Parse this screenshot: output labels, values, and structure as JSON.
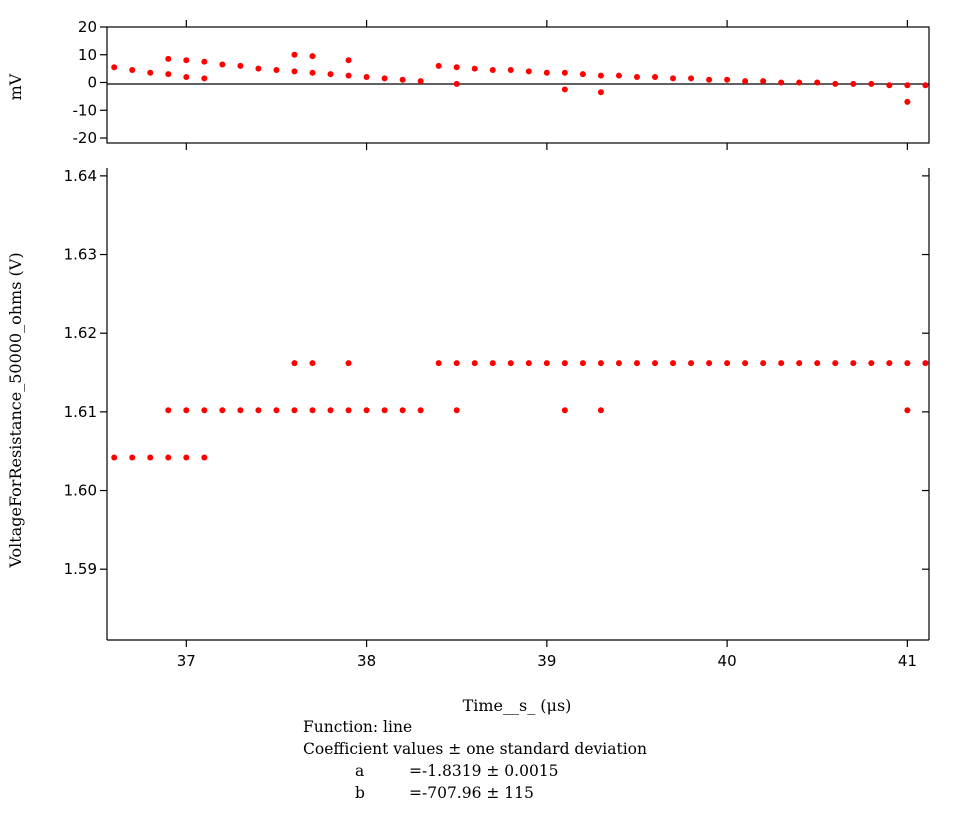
{
  "chart_data": [
    {
      "type": "scatter",
      "panel": "residuals",
      "ylabel": "mV",
      "ylim": [
        -20,
        20
      ],
      "yticks": [
        20,
        10,
        0,
        -10,
        -20
      ],
      "zero_line": true,
      "color": "#ff0000",
      "points": [
        [
          36.6,
          5.5
        ],
        [
          36.7,
          4.5
        ],
        [
          36.8,
          3.5
        ],
        [
          36.9,
          8.5
        ],
        [
          36.9,
          3.0
        ],
        [
          37.0,
          8.0
        ],
        [
          37.0,
          2.0
        ],
        [
          37.1,
          7.5
        ],
        [
          37.1,
          1.5
        ],
        [
          37.2,
          6.5
        ],
        [
          37.3,
          6.0
        ],
        [
          37.4,
          5.0
        ],
        [
          37.5,
          4.5
        ],
        [
          37.6,
          10.0
        ],
        [
          37.6,
          4.0
        ],
        [
          37.7,
          9.5
        ],
        [
          37.7,
          3.5
        ],
        [
          37.8,
          3.0
        ],
        [
          37.9,
          8.0
        ],
        [
          37.9,
          2.5
        ],
        [
          38.0,
          2.0
        ],
        [
          38.1,
          1.5
        ],
        [
          38.2,
          1.0
        ],
        [
          38.3,
          0.5
        ],
        [
          38.4,
          6.0
        ],
        [
          38.5,
          5.5
        ],
        [
          38.5,
          -0.5
        ],
        [
          38.6,
          5.0
        ],
        [
          38.7,
          4.5
        ],
        [
          38.8,
          4.5
        ],
        [
          38.9,
          4.0
        ],
        [
          39.0,
          3.5
        ],
        [
          39.1,
          3.5
        ],
        [
          39.1,
          -2.5
        ],
        [
          39.2,
          3.0
        ],
        [
          39.3,
          2.5
        ],
        [
          39.3,
          -3.5
        ],
        [
          39.4,
          2.5
        ],
        [
          39.5,
          2.0
        ],
        [
          39.6,
          2.0
        ],
        [
          39.7,
          1.5
        ],
        [
          39.8,
          1.5
        ],
        [
          39.9,
          1.0
        ],
        [
          40.0,
          1.0
        ],
        [
          40.1,
          0.5
        ],
        [
          40.2,
          0.5
        ],
        [
          40.3,
          0.0
        ],
        [
          40.4,
          0.0
        ],
        [
          40.5,
          0.0
        ],
        [
          40.6,
          -0.5
        ],
        [
          40.7,
          -0.5
        ],
        [
          40.8,
          -0.5
        ],
        [
          40.9,
          -1.0
        ],
        [
          41.0,
          -1.0
        ],
        [
          41.0,
          -7.0
        ],
        [
          41.1,
          -1.0
        ]
      ]
    },
    {
      "type": "scatter",
      "panel": "main",
      "xlabel": "Time__s_ (μs)",
      "ylabel": "VoltageForResistance_50000_ohms (V)",
      "xlim": [
        36.56,
        41.12
      ],
      "ylim": [
        1.581,
        1.641
      ],
      "xticks": [
        37,
        38,
        39,
        40,
        41
      ],
      "yticks": [
        1.64,
        1.63,
        1.62,
        1.61,
        1.6,
        1.59
      ],
      "color": "#ff0000",
      "points": [
        [
          36.6,
          1.6042
        ],
        [
          36.7,
          1.6042
        ],
        [
          36.8,
          1.6042
        ],
        [
          36.9,
          1.6042
        ],
        [
          37.0,
          1.6042
        ],
        [
          37.1,
          1.6042
        ],
        [
          36.9,
          1.6102
        ],
        [
          37.0,
          1.6102
        ],
        [
          37.1,
          1.6102
        ],
        [
          37.2,
          1.6102
        ],
        [
          37.3,
          1.6102
        ],
        [
          37.4,
          1.6102
        ],
        [
          37.5,
          1.6102
        ],
        [
          37.6,
          1.6102
        ],
        [
          37.7,
          1.6102
        ],
        [
          37.8,
          1.6102
        ],
        [
          37.9,
          1.6102
        ],
        [
          38.0,
          1.6102
        ],
        [
          38.1,
          1.6102
        ],
        [
          38.2,
          1.6102
        ],
        [
          38.3,
          1.6102
        ],
        [
          38.5,
          1.6102
        ],
        [
          39.1,
          1.6102
        ],
        [
          39.3,
          1.6102
        ],
        [
          41.0,
          1.6102
        ],
        [
          37.6,
          1.6162
        ],
        [
          37.7,
          1.6162
        ],
        [
          37.9,
          1.6162
        ],
        [
          38.4,
          1.6162
        ],
        [
          38.5,
          1.6162
        ],
        [
          38.6,
          1.6162
        ],
        [
          38.7,
          1.6162
        ],
        [
          38.8,
          1.6162
        ],
        [
          38.9,
          1.6162
        ],
        [
          39.0,
          1.6162
        ],
        [
          39.1,
          1.6162
        ],
        [
          39.2,
          1.6162
        ],
        [
          39.3,
          1.6162
        ],
        [
          39.4,
          1.6162
        ],
        [
          39.5,
          1.6162
        ],
        [
          39.6,
          1.6162
        ],
        [
          39.7,
          1.6162
        ],
        [
          39.8,
          1.6162
        ],
        [
          39.9,
          1.6162
        ],
        [
          40.0,
          1.6162
        ],
        [
          40.1,
          1.6162
        ],
        [
          40.2,
          1.6162
        ],
        [
          40.3,
          1.6162
        ],
        [
          40.4,
          1.6162
        ],
        [
          40.5,
          1.6162
        ],
        [
          40.6,
          1.6162
        ],
        [
          40.7,
          1.6162
        ],
        [
          40.8,
          1.6162
        ],
        [
          40.9,
          1.6162
        ],
        [
          41.0,
          1.6162
        ],
        [
          41.1,
          1.6162
        ]
      ]
    }
  ],
  "fit": {
    "function": "Function: line",
    "header": "Coefficient values ± one standard deviation",
    "coefficients": [
      {
        "name": "a",
        "value": "=-1.8319 ± 0.0015"
      },
      {
        "name": "b",
        "value": "=-707.96 ± 115"
      }
    ]
  }
}
